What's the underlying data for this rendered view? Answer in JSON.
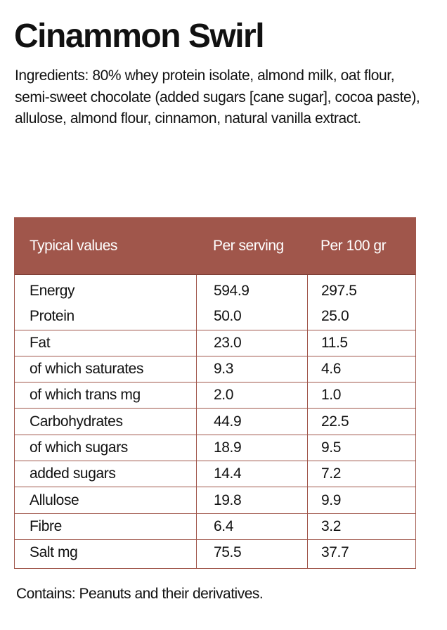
{
  "title": "Cinammon Swirl",
  "ingredients": "Ingredients: 80% whey protein isolate, almond milk, oat flour, semi-sweet chocolate (added sugars [cane sugar], cocoa paste), allulose, almond flour, cinnamon, natural vanilla extract.",
  "table": {
    "header_color": "#a0564b",
    "headers": [
      "Typical values",
      "Per serving",
      "Per 100 gr"
    ],
    "rows": [
      {
        "label": "Energy",
        "per_serving": "594.9",
        "per_100": "297.5"
      },
      {
        "label": "Protein",
        "per_serving": "50.0",
        "per_100": "25.0"
      },
      {
        "label": "Fat",
        "per_serving": "23.0",
        "per_100": "11.5"
      },
      {
        "label": "of which saturates",
        "per_serving": "9.3",
        "per_100": "4.6"
      },
      {
        "label": "of which trans mg",
        "per_serving": "2.0",
        "per_100": "1.0"
      },
      {
        "label": "Carbohydrates",
        "per_serving": "44.9",
        "per_100": "22.5"
      },
      {
        "label": "of which sugars",
        "per_serving": "18.9",
        "per_100": "9.5"
      },
      {
        "label": "added sugars",
        "per_serving": "14.4",
        "per_100": "7.2"
      },
      {
        "label": "Allulose",
        "per_serving": "19.8",
        "per_100": "9.9"
      },
      {
        "label": "Fibre",
        "per_serving": "6.4",
        "per_100": "3.2"
      },
      {
        "label": "Salt mg",
        "per_serving": "75.5",
        "per_100": "37.7"
      }
    ]
  },
  "contains": "Contains: Peanuts and their derivatives."
}
